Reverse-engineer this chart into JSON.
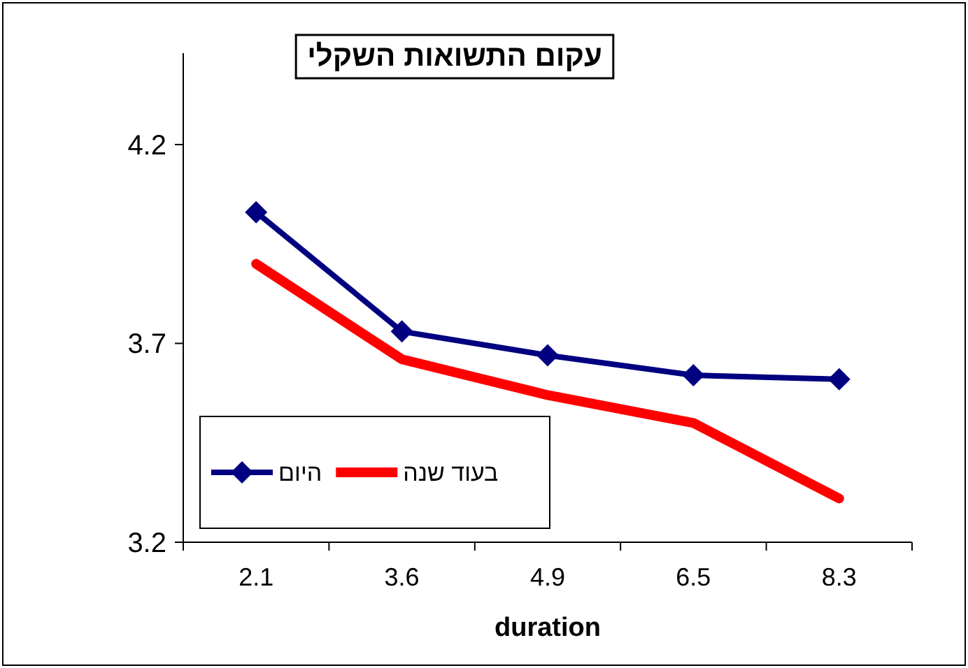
{
  "chart_data": {
    "type": "line",
    "title": "עקום התשואות השקלי",
    "xlabel": "duration",
    "categories": [
      "2.1",
      "3.6",
      "4.9",
      "6.5",
      "8.3"
    ],
    "series": [
      {
        "name": "היום",
        "color": "#000080",
        "values": [
          4.03,
          3.73,
          3.67,
          3.62,
          3.61
        ],
        "marker": "diamond"
      },
      {
        "name": "בעוד שנה",
        "color": "#ff0000",
        "values": [
          3.9,
          3.66,
          3.57,
          3.5,
          3.31
        ],
        "marker": "none"
      }
    ],
    "ylim": [
      3.2,
      4.43
    ],
    "yticks": [
      3.2,
      3.7,
      4.2
    ],
    "grid": false,
    "legend": "bottom left"
  }
}
